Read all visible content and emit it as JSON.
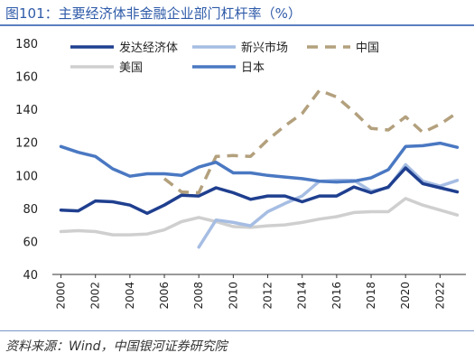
{
  "header": {
    "title": "图101：主要经济体非金融企业部门杠杆率（%）"
  },
  "footer": {
    "source": "资料来源：Wind，中国银河证券研究院"
  },
  "chart_data": {
    "type": "line",
    "title": "图101：主要经济体非金融企业部门杠杆率（%）",
    "xlabel": "",
    "ylabel": "",
    "x": [
      2000,
      2001,
      2002,
      2003,
      2004,
      2005,
      2006,
      2007,
      2008,
      2009,
      2010,
      2011,
      2012,
      2013,
      2014,
      2015,
      2016,
      2017,
      2018,
      2019,
      2020,
      2021,
      2022,
      2023
    ],
    "xticks": [
      "2000",
      "2002",
      "2004",
      "2006",
      "2008",
      "2010",
      "2012",
      "2014",
      "2016",
      "2018",
      "2020",
      "2022"
    ],
    "ylim": [
      40,
      180
    ],
    "yticks": [
      "40",
      "60",
      "80",
      "100",
      "120",
      "140",
      "160",
      "180"
    ],
    "grid": false,
    "legend_placement": "top",
    "series": [
      {
        "name": "发达经济体",
        "color": "#1f3f8f",
        "style": "solid",
        "values": [
          79,
          78.5,
          84.5,
          84,
          82,
          77,
          82,
          88,
          87.5,
          92.5,
          89.5,
          85.5,
          87.5,
          87.5,
          84,
          87.5,
          87.5,
          93,
          89.5,
          93,
          104.5,
          95,
          92.5,
          90
        ]
      },
      {
        "name": "新兴市场",
        "color": "#a6bde3",
        "style": "solid",
        "values": [
          null,
          null,
          null,
          null,
          null,
          null,
          null,
          null,
          56.5,
          73,
          71.5,
          69.5,
          78,
          83,
          87.5,
          96.5,
          97,
          97,
          90.5,
          92.5,
          106.5,
          96.5,
          93.5,
          97
        ]
      },
      {
        "name": "中国",
        "color": "#b3a07d",
        "style": "dashed",
        "values": [
          null,
          null,
          null,
          null,
          null,
          null,
          98,
          90,
          89.5,
          111.5,
          112,
          111.5,
          121.5,
          130,
          137.5,
          151.5,
          147.5,
          138.5,
          128.5,
          127.5,
          135.5,
          126,
          131,
          138
        ]
      },
      {
        "name": "美国",
        "color": "#cfcfcf",
        "style": "solid",
        "values": [
          66,
          66.5,
          66,
          64,
          64,
          64.5,
          67,
          72,
          74.5,
          72,
          69,
          68.5,
          69.5,
          70,
          71.5,
          73.5,
          75,
          77.5,
          78,
          78,
          86,
          82,
          79,
          76
        ]
      },
      {
        "name": "日本",
        "color": "#4a78c2",
        "style": "solid",
        "values": [
          117.5,
          114,
          111.5,
          104,
          99.5,
          101,
          101,
          100,
          105,
          108,
          101.5,
          101.5,
          100,
          99,
          98,
          96.5,
          96,
          96.5,
          98.5,
          103.5,
          117.5,
          118,
          119.5,
          117
        ]
      }
    ]
  }
}
